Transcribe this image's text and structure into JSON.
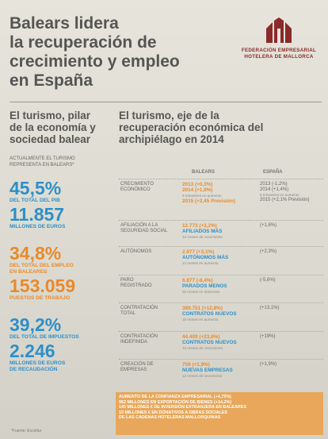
{
  "header": {
    "title_lines": [
      "Balears lidera",
      "la recuperación de",
      "crecimiento y empleo",
      "en España"
    ],
    "logo_text_lines": [
      "FEDERACIÓN EMPRESARIAL",
      "HOTELERA DE MALLORCA"
    ],
    "logo_icon": "hotel-federation-logo-icon"
  },
  "left": {
    "heading_lines": [
      "El turismo, pilar",
      "de la economía y",
      "sociedad balear"
    ],
    "subheading_lines": [
      "ACTUALMENTE EL TURISMO",
      "REPRESENTA EN BALEARS*"
    ],
    "stats": [
      {
        "value": "45,5%",
        "caption": "DEL TOTAL DEL PIB",
        "color": "#2e8fc9"
      },
      {
        "value": "11.857",
        "caption": "MILLONES DE EUROS",
        "color": "#2e8fc9"
      },
      {
        "value": "34,8%",
        "caption_lines": [
          "DEL TOTAL DEL EMPLEO",
          "EN BALEARES"
        ],
        "color": "#e88a2c"
      },
      {
        "value": "153.059",
        "caption": "PUESTOS DE TRABAJO",
        "color": "#e88a2c"
      },
      {
        "value": "39,2%",
        "caption": "DEL TOTAL DE IMPUESTOS",
        "color": "#2e8fc9"
      },
      {
        "value": "2.246",
        "caption_lines": [
          "MILLONES DE EUROS",
          "DE RECAUDACIÓN"
        ],
        "color": "#2e8fc9"
      }
    ],
    "fuente": "*Fuente: Exceltur"
  },
  "right": {
    "heading_lines": [
      "El turismo, eje de la",
      "recuperación económica del",
      "archipiélago en 2014"
    ],
    "col_baleares": "BALEARS",
    "col_espana": "ESPAÑA",
    "rows": [
      {
        "label_lines": [
          "CRECIMIENTO",
          "ECONÓMICO"
        ],
        "bal_lines": [
          "2013 (+0,3%)",
          "2014 (+1,9%)"
        ],
        "bal_small": "8 trimestres en aumento",
        "bal_extra": "2015 (+2,45 Previsión)",
        "esp_lines": [
          "2013 (-1,2%)",
          "2014 (+1,4%)",
          "5 trimestres en aumento",
          "2015 (+2,1% Previsión)"
        ]
      },
      {
        "label_lines": [
          "AFILIACIÓN A LA",
          "SEGURIDAD SOCIAL"
        ],
        "bal_lines": [
          "12.773 (+3,2%)"
        ],
        "bal_blue": "AFILIADOS MÁS",
        "bal_small": "13 meses de crecimiento",
        "esp_lines": [
          "(+1,6%)"
        ]
      },
      {
        "label_lines": [
          "AUTÓNOMOS"
        ],
        "bal_lines": [
          "2.677 (+3,1%)"
        ],
        "bal_blue": "AUTÓNOMOS MÁS",
        "bal_small": "12 meses en aumento",
        "esp_lines": [
          "(+2,3%)"
        ]
      },
      {
        "label_lines": [
          "PARO",
          "REGISTRADO"
        ],
        "bal_lines": [
          "6.877 (-8,4%)"
        ],
        "bal_blue": "PARADOS MENOS",
        "bal_small": "26 meses en descenso",
        "esp_lines": [
          "(-5,6%)"
        ]
      },
      {
        "label_lines": [
          "CONTRATACIÓN",
          "TOTAL"
        ],
        "bal_lines": [
          "389.751 (+12,8%)"
        ],
        "bal_blue": "CONTRATOS NUEVOS",
        "bal_small": "18 meses en aumento",
        "esp_lines": [
          "(+13,1%)"
        ]
      },
      {
        "label_lines": [
          "CONTRATACIÓN",
          "INDEFINIDA"
        ],
        "bal_lines": [
          "44.409 (+23,6%)"
        ],
        "bal_blue": "CONTRATOS NUEVOS",
        "bal_small": "13 meses de crecimiento",
        "esp_lines": [
          "(+19%)"
        ]
      },
      {
        "label_lines": [
          "CREACIÓN DE",
          "EMPRESAS"
        ],
        "bal_lines": [
          "759 (+1,9%)"
        ],
        "bal_blue": "NUEVAS EMPRESAS",
        "bal_small": "12 meses de incremento",
        "esp_lines": [
          "(+1,9%)"
        ]
      }
    ],
    "bottom_lines": [
      "AUMENTO DE LA CONFIANZA EMPRESARIAL (+4,75%)",
      "952 MILLONES EN EXPORTACIÓN DE BIENES (+14,2%)",
      "145 MILLONES € DE INVERSIÓN EXTRANJERA EN BALEARES",
      "10 MILLONES € EN DONATIVOS A OBRAS SOCIALES",
      "DE LAS CADENAS HOTELERAS MALLORQUINAS"
    ]
  }
}
